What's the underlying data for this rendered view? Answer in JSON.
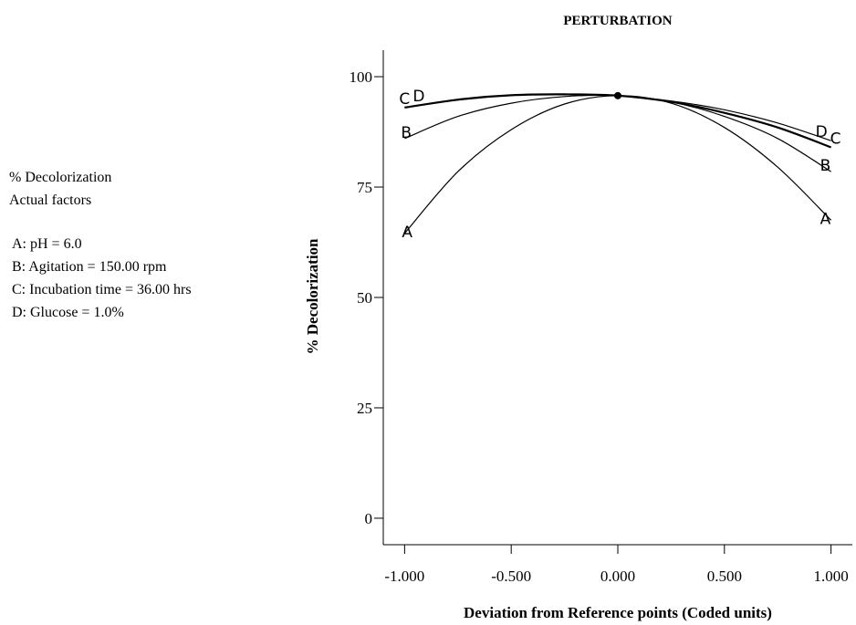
{
  "legend": {
    "response": "% Decolorization",
    "heading": "Actual factors",
    "factors": [
      "A: pH = 6.0",
      "B: Agitation = 150.00 rpm",
      "C: Incubation time = 36.00 hrs",
      "D: Glucose = 1.0%"
    ]
  },
  "chart_data": {
    "type": "line",
    "title": "PERTURBATION",
    "xlabel": "Deviation from Reference points (Coded units)",
    "ylabel": "% Decolorization",
    "xlim": [
      -1.1,
      1.1
    ],
    "ylim": [
      -6,
      106
    ],
    "xticks": [
      -1.0,
      -0.5,
      0.0,
      0.5,
      1.0
    ],
    "xtick_labels": [
      "-1.000",
      "-0.500",
      "0.000",
      "0.500",
      "1.000"
    ],
    "yticks": [
      0,
      25,
      50,
      75,
      100
    ],
    "ytick_labels": [
      "0",
      "25",
      "50",
      "75",
      "100"
    ],
    "grid": false,
    "reference_point": {
      "x": 0.0,
      "y": 95.7
    },
    "x": [
      -1.0,
      -0.75,
      -0.5,
      -0.25,
      0.0,
      0.25,
      0.5,
      0.75,
      1.0
    ],
    "series": [
      {
        "name": "A",
        "values": [
          64.5,
          78.5,
          88.0,
          93.8,
          95.7,
          94.0,
          88.5,
          79.5,
          67.5
        ]
      },
      {
        "name": "B",
        "values": [
          86.0,
          91.0,
          94.0,
          95.5,
          95.7,
          94.3,
          91.0,
          86.0,
          78.5
        ]
      },
      {
        "name": "C",
        "values": [
          93.0,
          94.8,
          95.8,
          96.0,
          95.7,
          94.3,
          91.8,
          88.5,
          84.0
        ]
      },
      {
        "name": "D",
        "values": [
          93.0,
          94.7,
          95.8,
          96.0,
          95.7,
          94.5,
          92.5,
          89.5,
          85.5
        ]
      }
    ]
  }
}
